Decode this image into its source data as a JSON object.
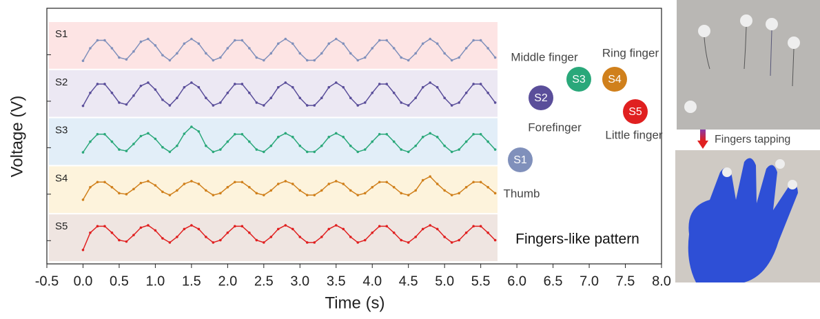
{
  "chart_data": {
    "type": "line",
    "xlabel": "Time (s)",
    "ylabel": "Voltage (V)",
    "xlim": [
      -0.5,
      8.0
    ],
    "xticks": [
      -0.5,
      {
        "value": 0,
        "label": "0.0"
      },
      0.5,
      {
        "value": 1,
        "label": "1.0"
      },
      1.5,
      {
        "value": 2,
        "label": "2.0"
      },
      2.5,
      {
        "value": 3,
        "label": "3.0"
      },
      3.5,
      {
        "value": 4,
        "label": "4.0"
      },
      4.5,
      {
        "value": 5,
        "label": "5.0"
      },
      5.5,
      {
        "value": 6,
        "label": "6.0"
      },
      6.5,
      {
        "value": 7,
        "label": "7.0"
      },
      7.5,
      {
        "value": 8,
        "label": "8.0"
      }
    ],
    "ylim": [
      0,
      5.5
    ],
    "yticks": [
      0.5,
      1.5,
      2.5,
      3.5,
      4.5
    ],
    "x": [
      0,
      0.1,
      0.2,
      0.3,
      0.4,
      0.5,
      0.6,
      0.7,
      0.8,
      0.9,
      1,
      1.1,
      1.2,
      1.3,
      1.4,
      1.5,
      1.6,
      1.7,
      1.8,
      1.9,
      2,
      2.1,
      2.2,
      2.3,
      2.4,
      2.5,
      2.6,
      2.7,
      2.8,
      2.9,
      3,
      3.1,
      3.2,
      3.3,
      3.4,
      3.5,
      3.6,
      3.7,
      3.8,
      3.9,
      4,
      4.1,
      4.2,
      4.3,
      4.4,
      4.5,
      4.6,
      4.7,
      4.8,
      4.9,
      5,
      5.1,
      5.2,
      5.3,
      5.4,
      5.5,
      5.6,
      5.7
    ],
    "series": [
      {
        "name": "S1",
        "color": "#8090bb",
        "values": [
          4.37,
          4.64,
          4.81,
          4.81,
          4.64,
          4.44,
          4.4,
          4.57,
          4.78,
          4.84,
          4.7,
          4.49,
          4.38,
          4.53,
          4.74,
          4.84,
          4.74,
          4.53,
          4.38,
          4.44,
          4.64,
          4.81,
          4.81,
          4.64,
          4.44,
          4.38,
          4.53,
          4.74,
          4.84,
          4.74,
          4.53,
          4.38,
          4.38,
          4.53,
          4.74,
          4.84,
          4.74,
          4.53,
          4.38,
          4.44,
          4.64,
          4.81,
          4.81,
          4.64,
          4.44,
          4.38,
          4.53,
          4.74,
          4.84,
          4.74,
          4.53,
          4.38,
          4.44,
          4.64,
          4.81,
          4.81,
          4.64,
          4.44
        ]
      },
      {
        "name": "S2",
        "color": "#5a4e9a",
        "values": [
          3.4,
          3.68,
          3.87,
          3.87,
          3.68,
          3.47,
          3.43,
          3.62,
          3.83,
          3.9,
          3.75,
          3.53,
          3.41,
          3.57,
          3.8,
          3.9,
          3.8,
          3.57,
          3.41,
          3.47,
          3.68,
          3.87,
          3.87,
          3.68,
          3.47,
          3.41,
          3.57,
          3.8,
          3.9,
          3.8,
          3.57,
          3.41,
          3.41,
          3.57,
          3.8,
          3.9,
          3.8,
          3.57,
          3.41,
          3.47,
          3.68,
          3.87,
          3.87,
          3.68,
          3.47,
          3.41,
          3.57,
          3.8,
          3.9,
          3.8,
          3.57,
          3.41,
          3.47,
          3.68,
          3.87,
          3.87,
          3.68,
          3.47
        ]
      },
      {
        "name": "S3",
        "color": "#2aa87a",
        "values": [
          2.4,
          2.63,
          2.79,
          2.79,
          2.63,
          2.46,
          2.43,
          2.58,
          2.75,
          2.81,
          2.69,
          2.51,
          2.41,
          2.54,
          2.8,
          2.95,
          2.85,
          2.54,
          2.41,
          2.46,
          2.63,
          2.79,
          2.79,
          2.63,
          2.46,
          2.41,
          2.54,
          2.73,
          2.81,
          2.73,
          2.54,
          2.41,
          2.41,
          2.54,
          2.73,
          2.81,
          2.73,
          2.54,
          2.41,
          2.46,
          2.63,
          2.79,
          2.79,
          2.63,
          2.46,
          2.41,
          2.54,
          2.73,
          2.81,
          2.73,
          2.54,
          2.41,
          2.46,
          2.63,
          2.79,
          2.79,
          2.63,
          2.46
        ]
      },
      {
        "name": "S4",
        "color": "#d0801c",
        "values": [
          1.38,
          1.65,
          1.76,
          1.76,
          1.65,
          1.52,
          1.5,
          1.61,
          1.74,
          1.78,
          1.69,
          1.55,
          1.48,
          1.58,
          1.72,
          1.78,
          1.72,
          1.58,
          1.48,
          1.52,
          1.65,
          1.76,
          1.76,
          1.65,
          1.52,
          1.48,
          1.58,
          1.72,
          1.78,
          1.72,
          1.58,
          1.48,
          1.48,
          1.58,
          1.72,
          1.78,
          1.72,
          1.58,
          1.48,
          1.52,
          1.65,
          1.76,
          1.76,
          1.65,
          1.52,
          1.48,
          1.58,
          1.8,
          1.88,
          1.72,
          1.58,
          1.48,
          1.52,
          1.65,
          1.76,
          1.76,
          1.65,
          1.52
        ]
      },
      {
        "name": "S5",
        "color": "#e02020",
        "values": [
          0.3,
          0.67,
          0.81,
          0.81,
          0.67,
          0.51,
          0.48,
          0.62,
          0.78,
          0.83,
          0.72,
          0.55,
          0.46,
          0.58,
          0.75,
          0.83,
          0.75,
          0.58,
          0.46,
          0.51,
          0.67,
          0.81,
          0.81,
          0.67,
          0.51,
          0.46,
          0.58,
          0.75,
          0.83,
          0.75,
          0.58,
          0.46,
          0.46,
          0.58,
          0.75,
          0.83,
          0.75,
          0.58,
          0.46,
          0.51,
          0.67,
          0.81,
          0.81,
          0.67,
          0.51,
          0.46,
          0.58,
          0.75,
          0.83,
          0.75,
          0.58,
          0.46,
          0.51,
          0.67,
          0.81,
          0.81,
          0.67,
          0.51
        ]
      }
    ],
    "annotations": [
      "Middle finger",
      "Ring finger",
      "Forefinger",
      "Little finger",
      "Thumb",
      "Fingers-like pattern",
      "Fingers tapping"
    ]
  }
}
